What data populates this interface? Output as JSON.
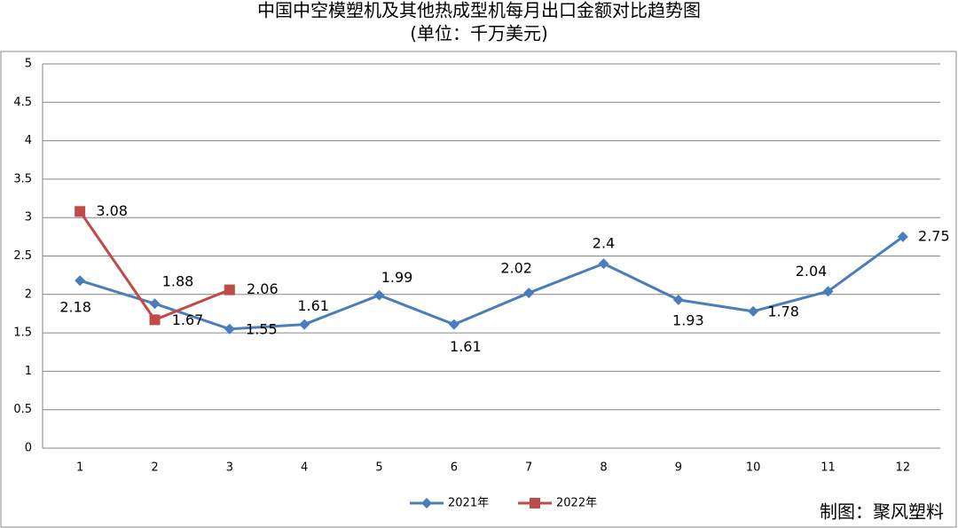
{
  "chart_data": {
    "type": "line",
    "title": "中国中空模塑机及其他热成型机每月出口金额对比趋势图",
    "subtitle": "(单位：千万美元)",
    "credit": "制图：聚风塑料",
    "categories": [
      "1",
      "2",
      "3",
      "4",
      "5",
      "6",
      "7",
      "8",
      "9",
      "10",
      "11",
      "12"
    ],
    "series": [
      {
        "name": "2021年",
        "color": "#4a7ebb",
        "marker": "diamond",
        "values": [
          2.18,
          1.88,
          1.55,
          1.61,
          1.99,
          1.61,
          2.02,
          2.4,
          1.93,
          1.78,
          2.04,
          2.75
        ]
      },
      {
        "name": "2022年",
        "color": "#be4b48",
        "marker": "square",
        "values": [
          3.08,
          1.67,
          2.06,
          null,
          null,
          null,
          null,
          null,
          null,
          null,
          null,
          null
        ]
      }
    ],
    "ylim": [
      0,
      5
    ],
    "yticks": [
      0,
      0.5,
      1,
      1.5,
      2,
      2.5,
      3,
      3.5,
      4,
      4.5,
      5
    ],
    "grid": true,
    "legend": "bottom"
  }
}
